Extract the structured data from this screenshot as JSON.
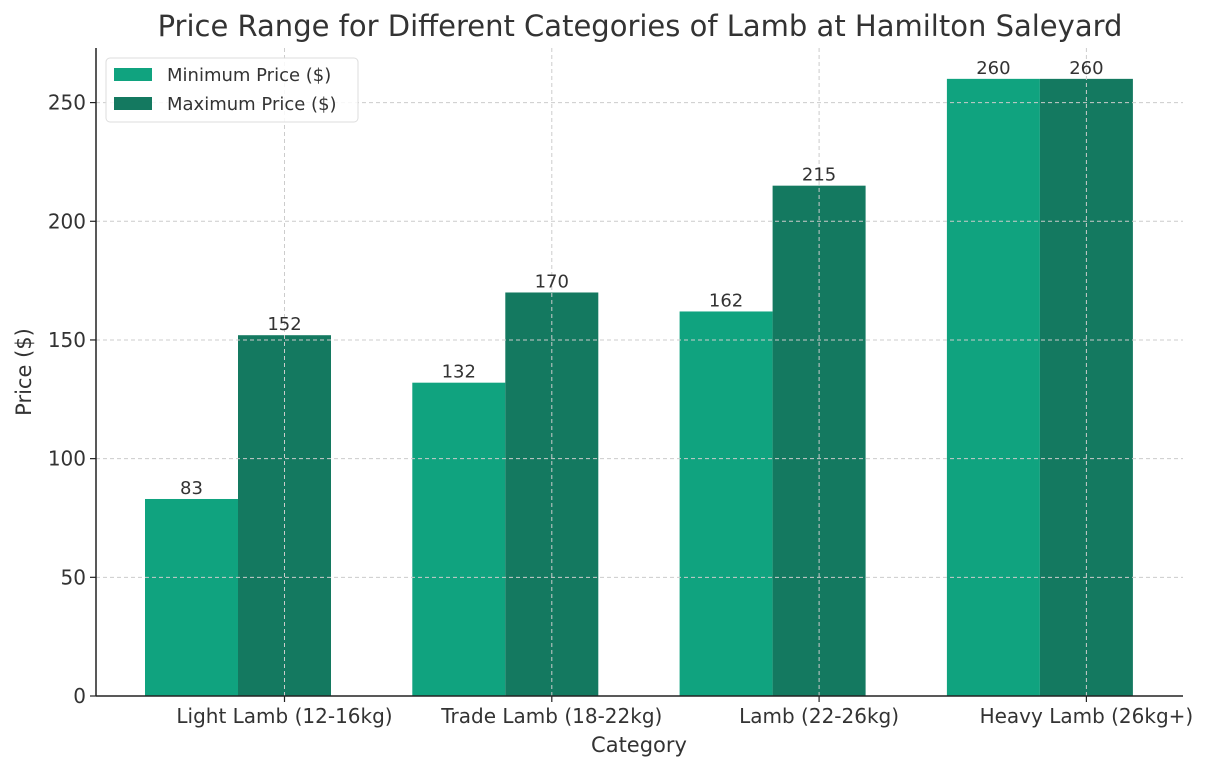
{
  "chart_data": {
    "type": "bar",
    "title": "Price Range for Different Categories of Lamb at Hamilton Saleyard",
    "xlabel": "Category",
    "ylabel": "Price ($)",
    "ylim": [
      0,
      273
    ],
    "yticks": [
      0,
      50,
      100,
      150,
      200,
      250
    ],
    "grid": true,
    "legend_position": "top-left",
    "categories": [
      "Light Lamb (12-16kg)",
      "Trade Lamb (18-22kg)",
      "Lamb (22-26kg)",
      "Heavy Lamb (26kg+)"
    ],
    "series": [
      {
        "name": "Minimum Price ($)",
        "values": [
          83,
          132,
          162,
          260
        ],
        "color": "#10a37f"
      },
      {
        "name": "Maximum Price ($)",
        "values": [
          152,
          170,
          215,
          260
        ],
        "color": "#147960"
      }
    ]
  }
}
